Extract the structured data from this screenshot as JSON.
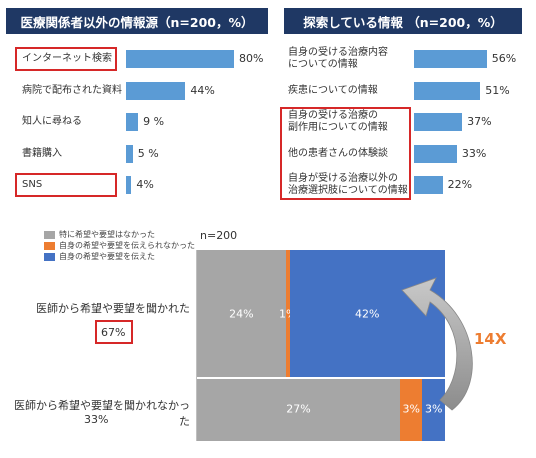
{
  "chart_data": [
    {
      "type": "bar",
      "title": "医療関係者以外の情報源（n=200，%）",
      "categories": [
        "インターネット検索",
        "病院で配布された資料",
        "知人に尋ねる",
        "書籍購入",
        "SNS"
      ],
      "values": [
        80,
        44,
        9,
        5,
        4
      ],
      "value_labels": [
        "80%",
        "44%",
        "9 %",
        "5 %",
        "4%"
      ],
      "highlighted": [
        "インターネット検索",
        "SNS"
      ],
      "bar_color": "#5b9bd5"
    },
    {
      "type": "bar",
      "title": "探索している情報 （n=200，%）",
      "categories": [
        [
          "自身の受ける治療内容",
          "についての情報"
        ],
        [
          "疾患についての情報"
        ],
        [
          "自身の受ける治療の",
          "副作用についての情報"
        ],
        [
          "他の患者さんの体験談"
        ],
        [
          "自身が受ける治療以外の",
          "治療選択肢についての情報"
        ]
      ],
      "values": [
        56,
        51,
        37,
        33,
        22
      ],
      "value_labels": [
        "56%",
        "51%",
        "37%",
        "33%",
        "22%"
      ],
      "highlighted_indices": [
        2,
        3,
        4
      ],
      "bar_color": "#5b9bd5"
    },
    {
      "type": "bar",
      "stacked": true,
      "n_label": "n=200",
      "legend": [
        {
          "label": "特に希望や要望はなかった",
          "color": "#a6a6a6"
        },
        {
          "label": "自身の希望や要望を伝えられなかった",
          "color": "#ed7d31"
        },
        {
          "label": "自身の希望や要望を伝えた",
          "color": "#4472c4"
        }
      ],
      "rows": [
        {
          "label": "医師から希望や要望を聞かれた",
          "total": "67%",
          "total_highlighted": true,
          "values": [
            24,
            1,
            42
          ],
          "value_labels": [
            "24%",
            "1%",
            "42%"
          ]
        },
        {
          "label": "医師から希望や要望を聞かれなかった",
          "total": "33%",
          "total_highlighted": false,
          "values": [
            27,
            3,
            3
          ],
          "value_labels": [
            "27%",
            "3%",
            "3%"
          ]
        }
      ],
      "annotation": "14X",
      "annotation_color": "#ed7d31"
    }
  ]
}
